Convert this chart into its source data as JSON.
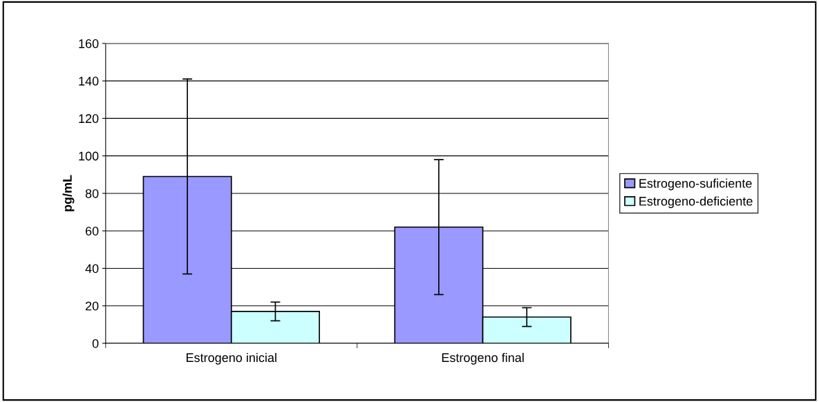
{
  "chart_data": {
    "type": "bar",
    "ylabel": "pg/mL",
    "categories": [
      "Estrogeno inicial",
      "Estrogeno final"
    ],
    "series": [
      {
        "name": "Estrogeno-suficiente",
        "color": "#9999ff",
        "values": [
          89,
          62
        ],
        "errors": [
          52,
          36
        ]
      },
      {
        "name": "Estrogeno-deficiente",
        "color": "#ccffff",
        "values": [
          17,
          14
        ],
        "errors": [
          5,
          5
        ]
      }
    ],
    "ylim": [
      0,
      160
    ],
    "yticks": [
      0,
      20,
      40,
      60,
      80,
      100,
      120,
      140,
      160
    ],
    "grid": "y",
    "legend": "right"
  }
}
